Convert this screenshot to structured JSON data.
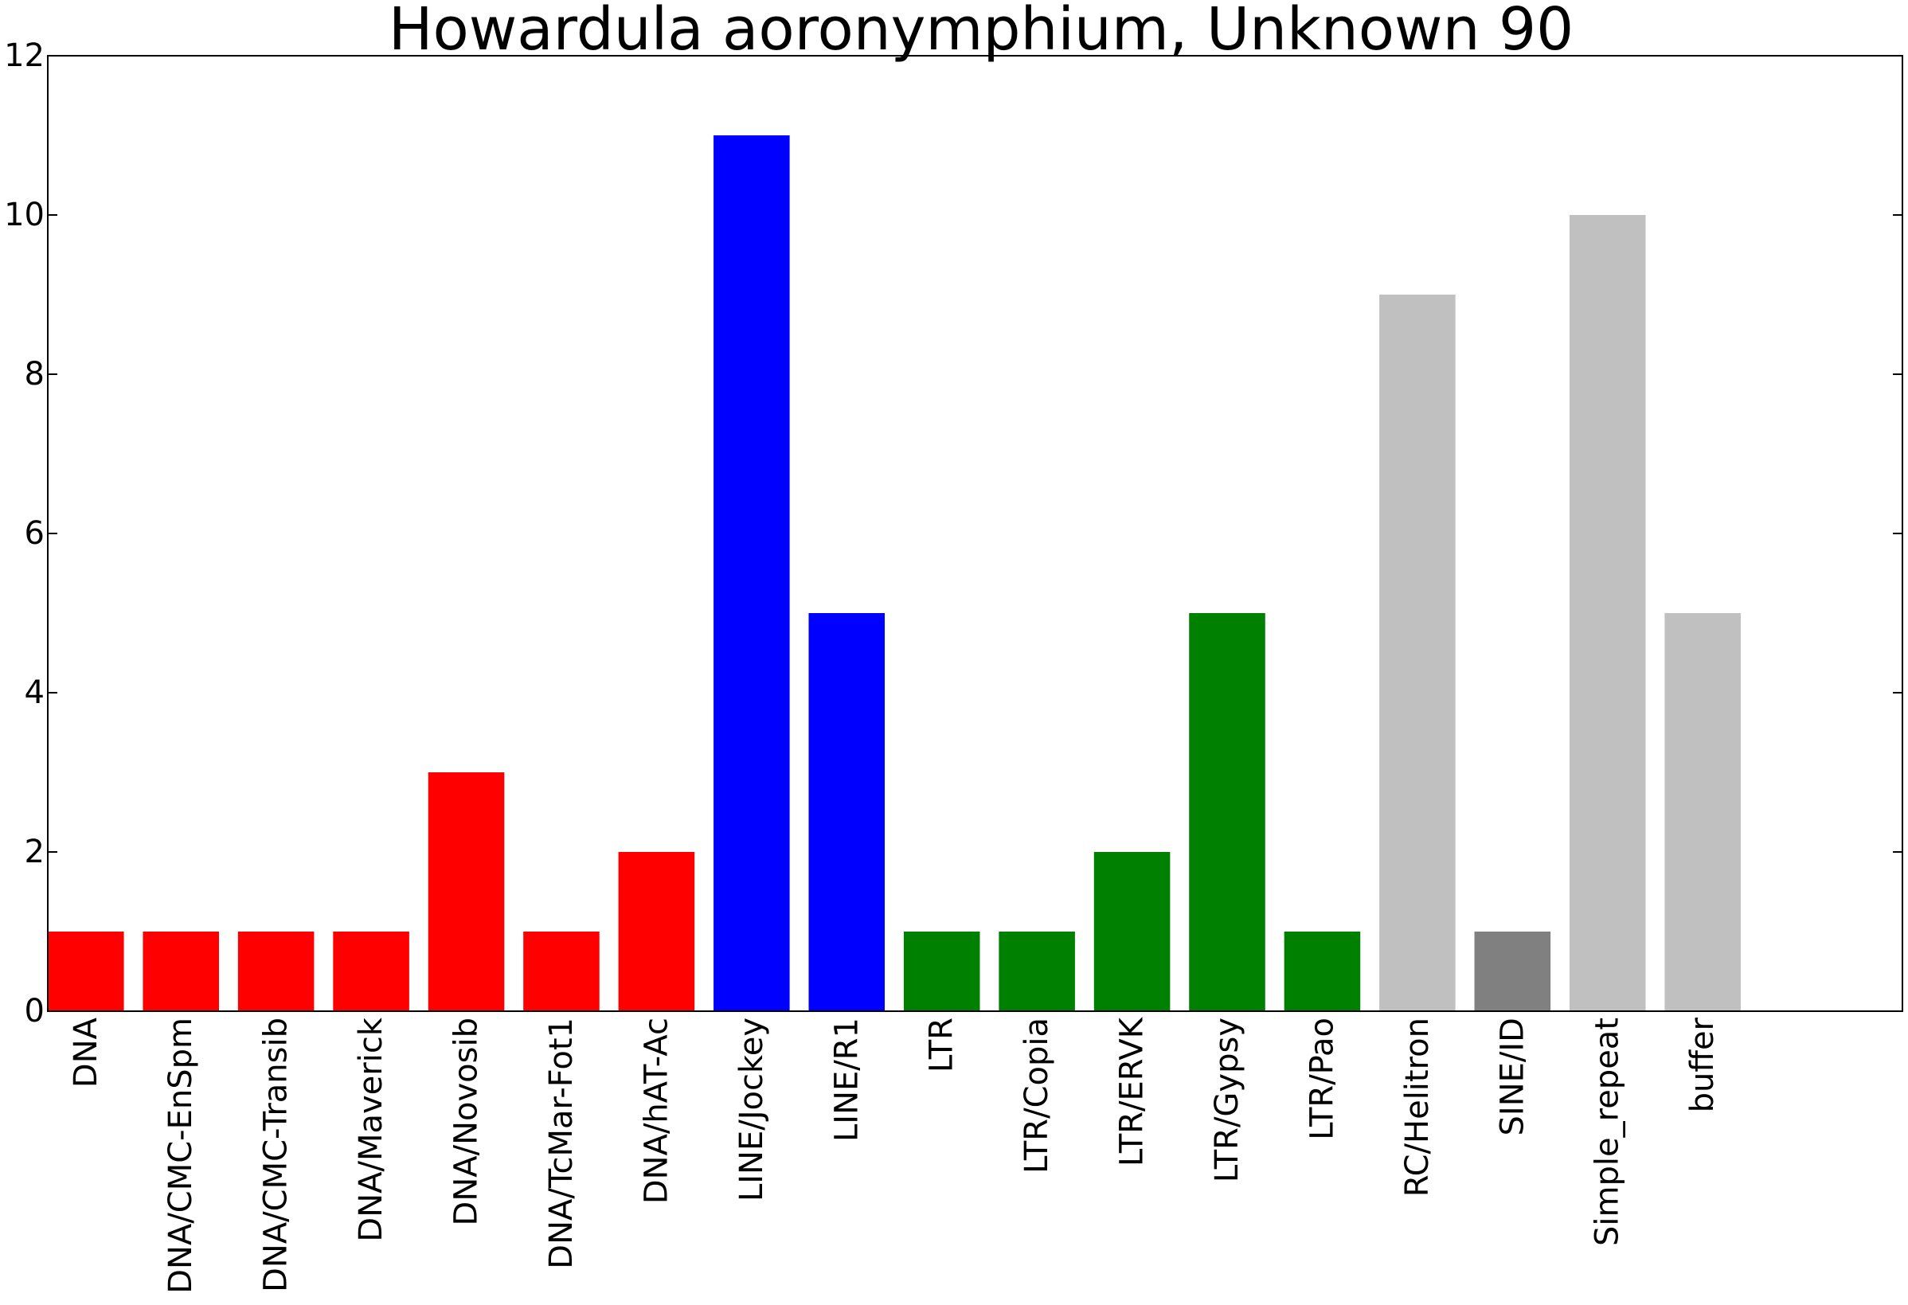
{
  "chart_data": {
    "type": "bar",
    "title": "Howardula aoronymphium, Unknown 90",
    "xlabel": "",
    "ylabel": "",
    "ylim": [
      0,
      12
    ],
    "yticks": [
      0,
      2,
      4,
      6,
      8,
      10,
      12
    ],
    "grid": false,
    "categories": [
      "DNA",
      "DNA/CMC-EnSpm",
      "DNA/CMC-Transib",
      "DNA/Maverick",
      "DNA/Novosib",
      "DNA/TcMar-Fot1",
      "DNA/hAT-Ac",
      "LINE/Jockey",
      "LINE/R1",
      "LTR",
      "LTR/Copia",
      "LTR/ERVK",
      "LTR/Gypsy",
      "LTR/Pao",
      "RC/Helitron",
      "SINE/ID",
      "Simple_repeat",
      "buffer"
    ],
    "values": [
      1,
      1,
      1,
      1,
      3,
      1,
      2,
      11,
      5,
      1,
      1,
      2,
      5,
      1,
      9,
      1,
      10,
      5
    ],
    "colors": [
      "#ff0000",
      "#ff0000",
      "#ff0000",
      "#ff0000",
      "#ff0000",
      "#ff0000",
      "#ff0000",
      "#0000ff",
      "#0000ff",
      "#008000",
      "#008000",
      "#008000",
      "#008000",
      "#008000",
      "#c0c0c0",
      "#808080",
      "#c0c0c0",
      "#c0c0c0"
    ],
    "xlim": [
      0,
      19.5
    ]
  }
}
